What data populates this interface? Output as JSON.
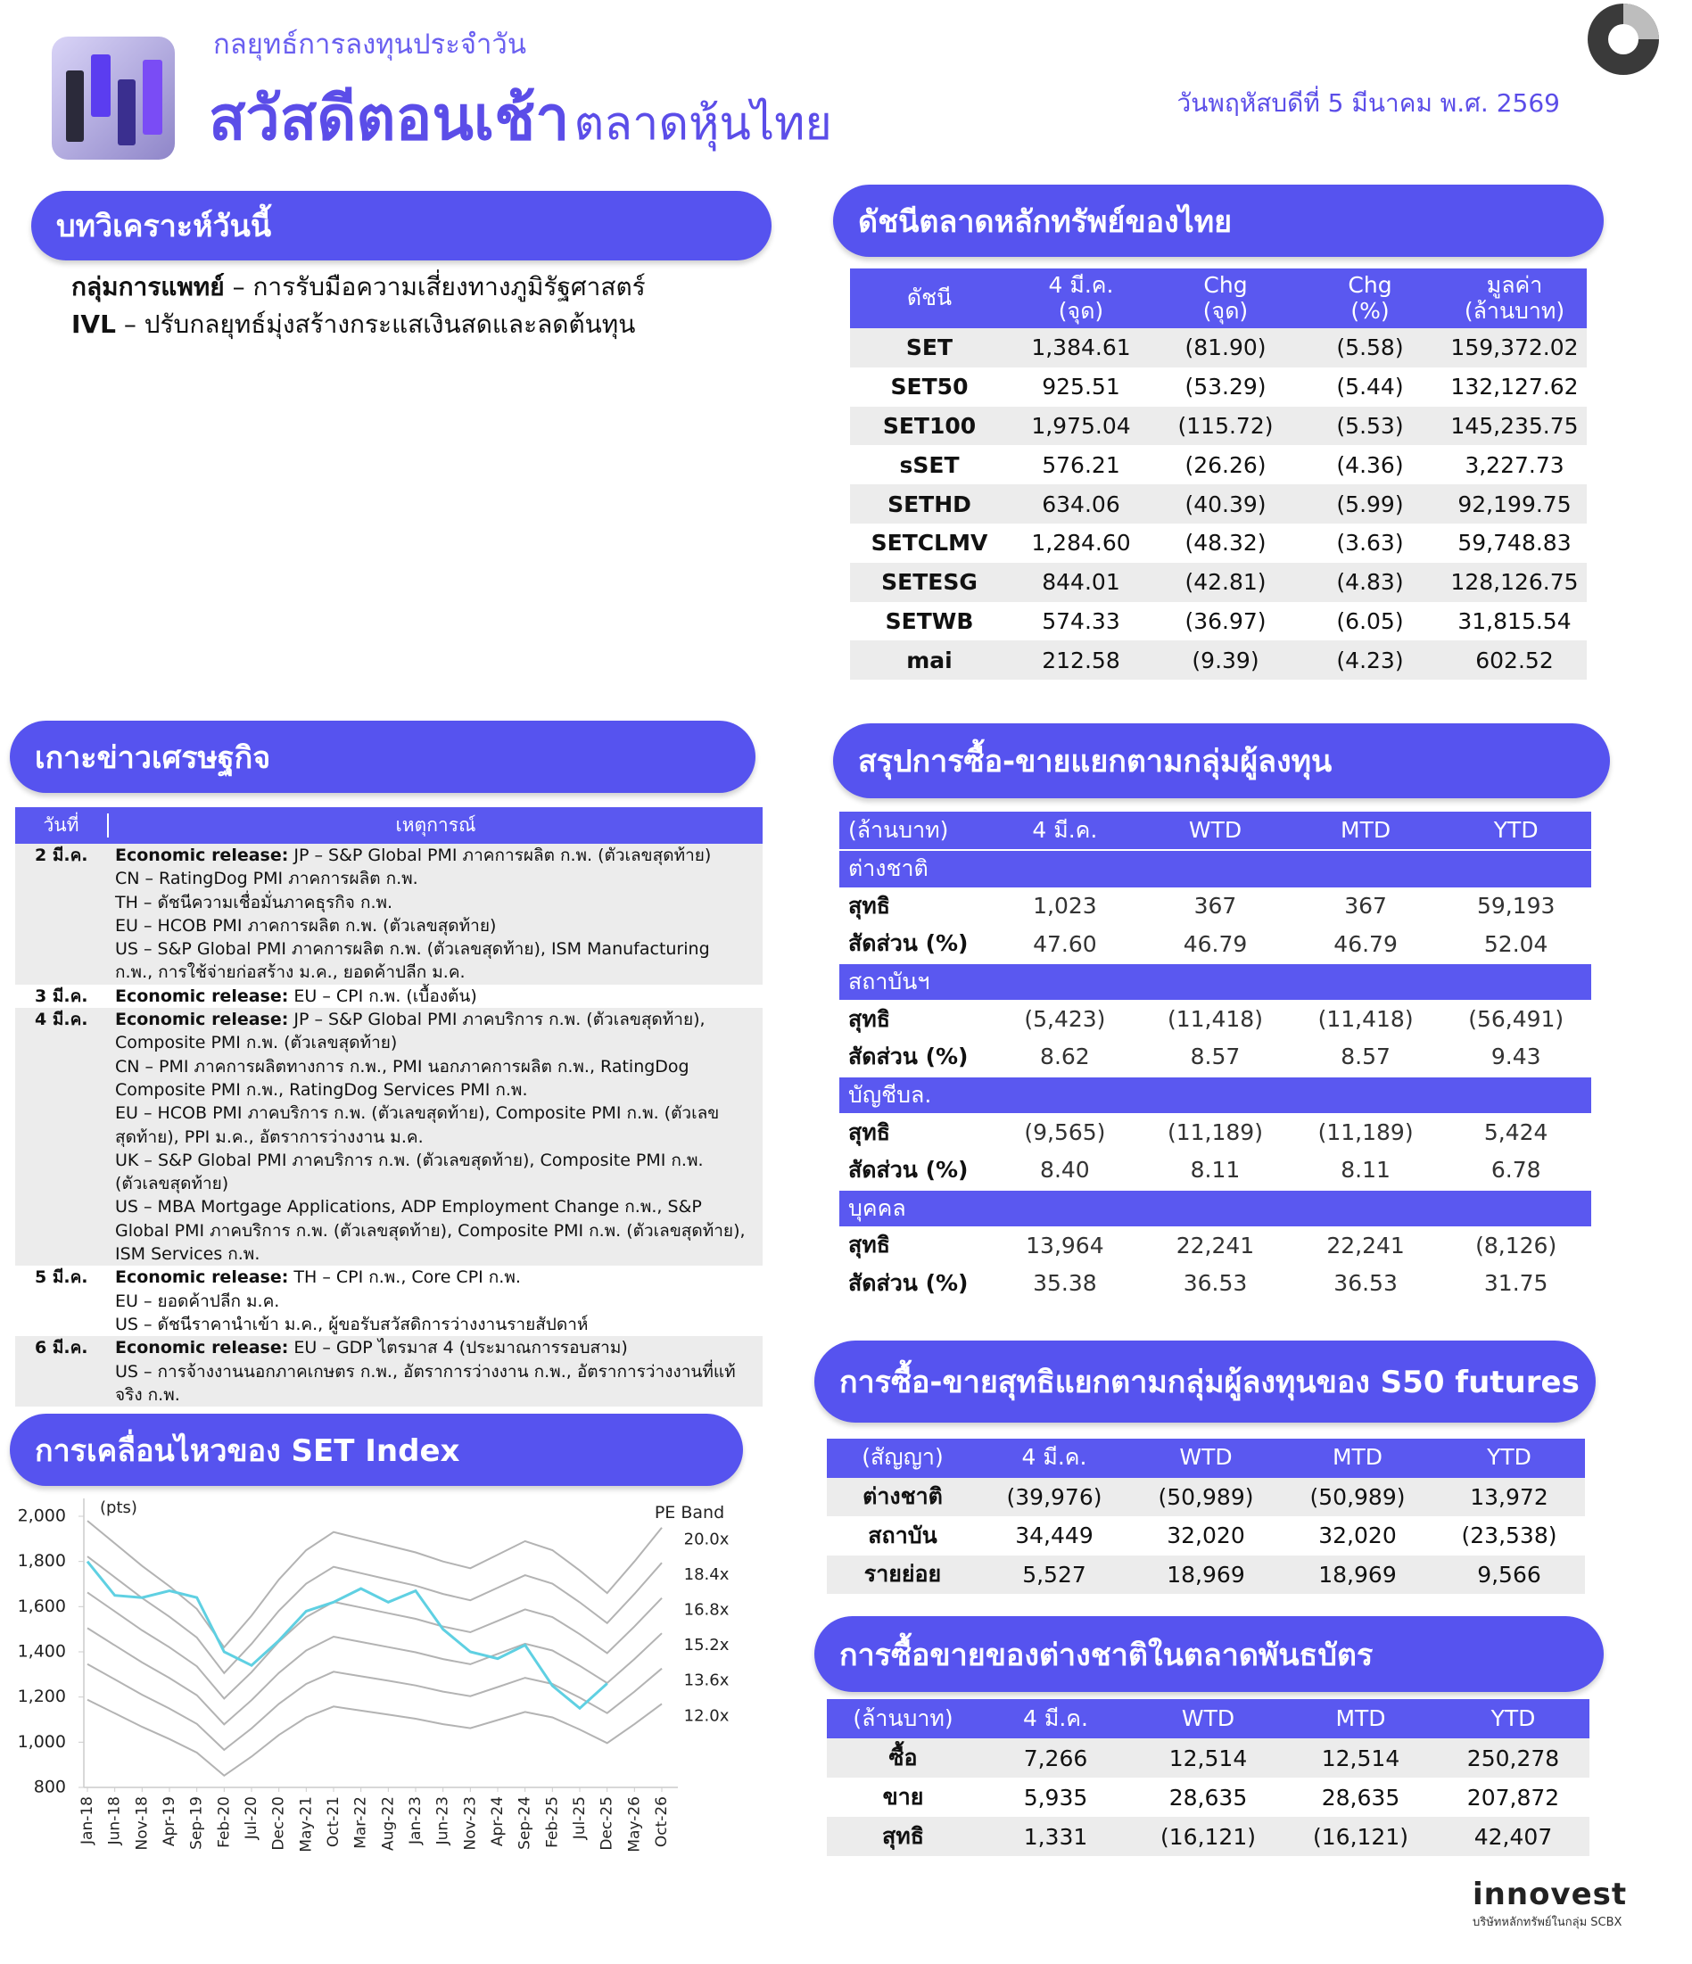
{
  "header": {
    "subtitle": "กลยุทธ์การลงทุนประจำวัน",
    "title_main": "สวัสดีตอนเช้า",
    "title_sub": "ตลาดหุ้นไทย",
    "date": "วันพฤหัสบดีที่ 5 มีนาคม พ.ศ. 2569"
  },
  "analysis": {
    "heading": "บทวิเคราะห์วันนี้",
    "items": [
      {
        "topic": "กลุ่มการแพทย์",
        "text": "– การรับมือความเสี่ยงทางภูมิรัฐศาสตร์"
      },
      {
        "topic": "IVL",
        "text": "– ปรับกลยุทธ์มุ่งสร้างกระแสเงินสดและลดต้นทุน"
      }
    ]
  },
  "indices": {
    "heading": "ดัชนีตลาดหลักทรัพย์ของไทย",
    "columns": [
      [
        "ดัชนี"
      ],
      [
        "4 มี.ค.",
        "(จุด)"
      ],
      [
        "Chg",
        "(จุด)"
      ],
      [
        "Chg",
        "(%)"
      ],
      [
        "มูลค่า",
        "(ล้านบาท)"
      ]
    ],
    "rows": [
      [
        "SET",
        "1,384.61",
        "(81.90)",
        "(5.58)",
        "159,372.02"
      ],
      [
        "SET50",
        "925.51",
        "(53.29)",
        "(5.44)",
        "132,127.62"
      ],
      [
        "SET100",
        "1,975.04",
        "(115.72)",
        "(5.53)",
        "145,235.75"
      ],
      [
        "sSET",
        "576.21",
        "(26.26)",
        "(4.36)",
        "3,227.73"
      ],
      [
        "SETHD",
        "634.06",
        "(40.39)",
        "(5.99)",
        "92,199.75"
      ],
      [
        "SETCLMV",
        "1,284.60",
        "(48.32)",
        "(3.63)",
        "59,748.83"
      ],
      [
        "SETESG",
        "844.01",
        "(42.81)",
        "(4.83)",
        "128,126.75"
      ],
      [
        "SETWB",
        "574.33",
        "(36.97)",
        "(6.05)",
        "31,815.54"
      ],
      [
        "mai",
        "212.58",
        "(9.39)",
        "(4.23)",
        "602.52"
      ]
    ]
  },
  "economy": {
    "heading": "เกาะข่าวเศรษฐกิจ",
    "columns": [
      "วันที่",
      "เหตุการณ์"
    ],
    "rows": [
      {
        "date": "2 มี.ค.",
        "label": "Economic release:",
        "items": [
          "JP – S&P Global PMI ภาคการผลิต ก.พ. (ตัวเลขสุดท้าย)",
          "CN – RatingDog PMI ภาคการผลิต ก.พ.",
          "TH – ดัชนีความเชื่อมั่นภาคธุรกิจ ก.พ.",
          "EU – HCOB PMI ภาคการผลิต ก.พ. (ตัวเลขสุดท้าย)",
          "US – S&P Global PMI ภาคการผลิต ก.พ. (ตัวเลขสุดท้าย), ISM Manufacturing ก.พ., การใช้จ่ายก่อสร้าง ม.ค., ยอดค้าปลีก ม.ค."
        ]
      },
      {
        "date": "3 มี.ค.",
        "label": "Economic release:",
        "items": [
          "EU – CPI ก.พ. (เบื้องต้น)"
        ]
      },
      {
        "date": "4 มี.ค.",
        "label": "Economic release:",
        "items": [
          "JP – S&P Global PMI ภาคบริการ ก.พ. (ตัวเลขสุดท้าย), Composite PMI ก.พ. (ตัวเลขสุดท้าย)",
          "CN – PMI ภาคการผลิตทางการ ก.พ., PMI นอกภาคการผลิต ก.พ., RatingDog Composite PMI ก.พ., RatingDog Services PMI ก.พ.",
          "EU – HCOB PMI ภาคบริการ ก.พ. (ตัวเลขสุดท้าย), Composite PMI ก.พ. (ตัวเลขสุดท้าย), PPI ม.ค., อัตราการว่างงาน ม.ค.",
          "UK – S&P Global PMI ภาคบริการ ก.พ. (ตัวเลขสุดท้าย), Composite PMI ก.พ. (ตัวเลขสุดท้าย)",
          "US – MBA Mortgage Applications, ADP Employment Change ก.พ., S&P Global PMI ภาคบริการ ก.พ. (ตัวเลขสุดท้าย), Composite PMI ก.พ. (ตัวเลขสุดท้าย), ISM Services ก.พ."
        ]
      },
      {
        "date": "5 มี.ค.",
        "label": "Economic release:",
        "items": [
          "TH – CPI ก.พ., Core CPI ก.พ.",
          "EU – ยอดค้าปลีก ม.ค.",
          "US – ดัชนีราคานำเข้า ม.ค., ผู้ขอรับสวัสดิการว่างงานรายสัปดาห์"
        ]
      },
      {
        "date": "6 มี.ค.",
        "label": "Economic release:",
        "items": [
          "EU – GDP ไตรมาส 4 (ประมาณการรอบสาม)",
          "US – การจ้างงานนอกภาคเกษตร ก.พ., อัตราการว่างงาน ก.พ., อัตราการว่างงานที่แท้จริง ก.พ."
        ]
      }
    ]
  },
  "chart_data": {
    "type": "line",
    "title": "การเคลื่อนไหวของ SET Index",
    "y_label": "(pts)",
    "legend_title": "PE Band",
    "categories": [
      "Jan-18",
      "Jun-18",
      "Nov-18",
      "Apr-19",
      "Sep-19",
      "Feb-20",
      "Jul-20",
      "Dec-20",
      "May-21",
      "Oct-21",
      "Mar-22",
      "Aug-22",
      "Jan-23",
      "Jun-23",
      "Nov-23",
      "Apr-24",
      "Sep-24",
      "Feb-25",
      "Jul-25",
      "Dec-25",
      "May-26",
      "Oct-26"
    ],
    "ylim": [
      800,
      2000
    ],
    "yticks": [
      {
        "value": 800,
        "label": "800"
      },
      {
        "value": 1000,
        "label": "1,000"
      },
      {
        "value": 1200,
        "label": "1,200"
      },
      {
        "value": 1400,
        "label": "1,400"
      },
      {
        "value": 1600,
        "label": "1,600"
      },
      {
        "value": 1800,
        "label": "1,800"
      },
      {
        "value": 2000,
        "label": "2,000"
      }
    ],
    "series": [
      {
        "color": "#5fd0e2",
        "values": [
          1800,
          1650,
          1640,
          1670,
          1640,
          1400,
          1340,
          1450,
          1580,
          1620,
          1680,
          1620,
          1670,
          1500,
          1400,
          1370,
          1430,
          1250,
          1150,
          1260,
          null,
          null
        ]
      },
      {
        "name": "20.0x",
        "color": "#b3b3b3",
        "values": [
          1980,
          1880,
          1780,
          1690,
          1590,
          1420,
          1560,
          1720,
          1850,
          1930,
          1900,
          1870,
          1840,
          1800,
          1770,
          1830,
          1890,
          1850,
          1760,
          1660,
          1800,
          1950
        ]
      },
      {
        "name": "18.4x",
        "color": "#b3b3b3",
        "values": [
          1822,
          1730,
          1638,
          1555,
          1463,
          1306,
          1435,
          1582,
          1702,
          1776,
          1748,
          1720,
          1693,
          1656,
          1628,
          1684,
          1739,
          1702,
          1619,
          1527,
          1656,
          1794
        ]
      },
      {
        "name": "16.8x",
        "color": "#b3b3b3",
        "values": [
          1663,
          1579,
          1495,
          1420,
          1336,
          1193,
          1310,
          1445,
          1554,
          1621,
          1596,
          1571,
          1546,
          1512,
          1487,
          1537,
          1588,
          1554,
          1478,
          1394,
          1512,
          1638
        ]
      },
      {
        "name": "15.2x",
        "color": "#b3b3b3",
        "values": [
          1505,
          1429,
          1353,
          1284,
          1208,
          1079,
          1186,
          1307,
          1406,
          1467,
          1444,
          1421,
          1398,
          1368,
          1345,
          1391,
          1436,
          1406,
          1338,
          1262,
          1368,
          1482
        ]
      },
      {
        "name": "13.6x",
        "color": "#b3b3b3",
        "values": [
          1346,
          1278,
          1210,
          1149,
          1081,
          966,
          1061,
          1170,
          1258,
          1312,
          1292,
          1272,
          1251,
          1224,
          1204,
          1244,
          1285,
          1258,
          1197,
          1129,
          1224,
          1326
        ]
      },
      {
        "name": "12.0x",
        "color": "#b3b3b3",
        "values": [
          1188,
          1128,
          1068,
          1014,
          954,
          852,
          936,
          1032,
          1110,
          1158,
          1140,
          1122,
          1104,
          1080,
          1062,
          1098,
          1134,
          1110,
          1056,
          996,
          1080,
          1170
        ]
      }
    ]
  },
  "investors": {
    "heading": "สรุปการซื้อ-ขายแยกตามกลุ่มผู้ลงทุน",
    "columns": [
      "(ล้านบาท)",
      "4 มี.ค.",
      "WTD",
      "MTD",
      "YTD"
    ],
    "groups": [
      {
        "name": "ต่างชาติ",
        "rows": [
          [
            "สุทธิ",
            "1,023",
            "367",
            "367",
            "59,193"
          ],
          [
            "สัดส่วน (%)",
            "47.60",
            "46.79",
            "46.79",
            "52.04"
          ]
        ]
      },
      {
        "name": "สถาบันฯ",
        "rows": [
          [
            "สุทธิ",
            "(5,423)",
            "(11,418)",
            "(11,418)",
            "(56,491)"
          ],
          [
            "สัดส่วน (%)",
            "8.62",
            "8.57",
            "8.57",
            "9.43"
          ]
        ]
      },
      {
        "name": "บัญชีบล.",
        "rows": [
          [
            "สุทธิ",
            "(9,565)",
            "(11,189)",
            "(11,189)",
            "5,424"
          ],
          [
            "สัดส่วน (%)",
            "8.40",
            "8.11",
            "8.11",
            "6.78"
          ]
        ]
      },
      {
        "name": "บุคคล",
        "rows": [
          [
            "สุทธิ",
            "13,964",
            "22,241",
            "22,241",
            "(8,126)"
          ],
          [
            "สัดส่วน (%)",
            "35.38",
            "36.53",
            "36.53",
            "31.75"
          ]
        ]
      }
    ]
  },
  "futures": {
    "heading": "การซื้อ-ขายสุทธิแยกตามกลุ่มผู้ลงทุนของ S50 futures",
    "columns": [
      "(สัญญา)",
      "4 มี.ค.",
      "WTD",
      "MTD",
      "YTD"
    ],
    "rows": [
      [
        "ต่างชาติ",
        "(39,976)",
        "(50,989)",
        "(50,989)",
        "13,972"
      ],
      [
        "สถาบัน",
        "34,449",
        "32,020",
        "32,020",
        "(23,538)"
      ],
      [
        "รายย่อย",
        "5,527",
        "18,969",
        "18,969",
        "9,566"
      ]
    ]
  },
  "bonds": {
    "heading": "การซื้อขายของต่างชาติในตลาดพันธบัตร",
    "columns": [
      "(ล้านบาท)",
      "4 มี.ค.",
      "WTD",
      "MTD",
      "YTD"
    ],
    "rows": [
      [
        "ซื้อ",
        "7,266",
        "12,514",
        "12,514",
        "250,278"
      ],
      [
        "ขาย",
        "5,935",
        "28,635",
        "28,635",
        "207,872"
      ],
      [
        "สุทธิ",
        "1,331",
        "(16,121)",
        "(16,121)",
        "42,407"
      ]
    ]
  },
  "footer": {
    "brand": "innovest",
    "tagline": "บริษัทหลักทรัพย์ในกลุ่ม SCBX"
  }
}
